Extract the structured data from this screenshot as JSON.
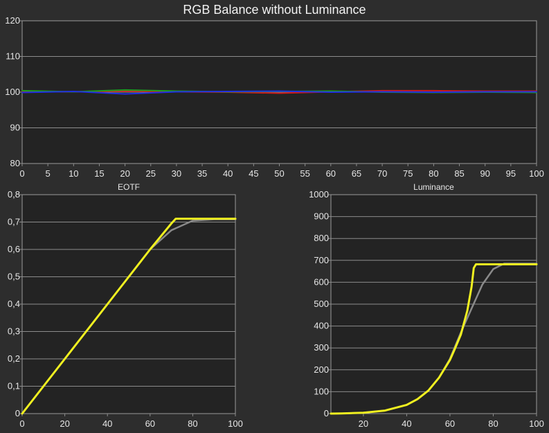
{
  "title": "RGB Balance without Luminance",
  "chart_data": [
    {
      "type": "line",
      "title": "RGB Balance without Luminance",
      "xlim": [
        0,
        100
      ],
      "ylim": [
        80,
        120
      ],
      "xticks": [
        0,
        5,
        10,
        15,
        20,
        25,
        30,
        35,
        40,
        45,
        50,
        55,
        60,
        65,
        70,
        75,
        80,
        85,
        90,
        95,
        100
      ],
      "yticks": [
        80,
        90,
        100,
        110,
        120
      ],
      "ytick_labels": [
        "80",
        "90",
        "100",
        "110",
        "120"
      ],
      "grid": true,
      "series": [
        {
          "color": "#d01a1a",
          "x": [
            0,
            10,
            20,
            30,
            40,
            50,
            60,
            70,
            80,
            90,
            100
          ],
          "y": [
            100.2,
            100.1,
            100.3,
            100.1,
            100.0,
            99.7,
            100.1,
            100.4,
            100.4,
            100.3,
            100.3
          ]
        },
        {
          "color": "#1fa01f",
          "x": [
            0,
            10,
            20,
            30,
            40,
            50,
            60,
            70,
            80,
            90,
            100
          ],
          "y": [
            100.4,
            100.1,
            100.6,
            100.3,
            100.1,
            100.2,
            100.3,
            100.0,
            99.9,
            100.0,
            99.9
          ]
        },
        {
          "color": "#2030e0",
          "x": [
            0,
            10,
            20,
            30,
            40,
            50,
            60,
            70,
            80,
            90,
            100
          ],
          "y": [
            99.9,
            100.2,
            99.5,
            100.1,
            100.2,
            100.3,
            100.0,
            100.1,
            100.0,
            100.1,
            100.1
          ]
        }
      ]
    },
    {
      "type": "line",
      "title": "EOTF",
      "xlim": [
        0,
        100
      ],
      "ylim": [
        0,
        0.8
      ],
      "xticks": [
        0,
        20,
        40,
        60,
        80,
        100
      ],
      "yticks": [
        0,
        0.1,
        0.2,
        0.3,
        0.4,
        0.5,
        0.6,
        0.7,
        0.8
      ],
      "ytick_labels": [
        "0",
        "0,1",
        "0,2",
        "0,3",
        "0,4",
        "0,5",
        "0,6",
        "0,7",
        "0,8"
      ],
      "grid": true,
      "series": [
        {
          "color": "#8a8a8a",
          "x": [
            0,
            10,
            20,
            30,
            40,
            50,
            60,
            70,
            80,
            90,
            100
          ],
          "y": [
            0,
            0.1,
            0.2,
            0.3,
            0.4,
            0.5,
            0.6,
            0.67,
            0.705,
            0.71,
            0.71
          ]
        },
        {
          "color": "#f0f020",
          "x": [
            0,
            10,
            20,
            30,
            40,
            50,
            60,
            70,
            72,
            80,
            90,
            100
          ],
          "y": [
            0,
            0.1,
            0.2,
            0.3,
            0.4,
            0.5,
            0.6,
            0.695,
            0.712,
            0.712,
            0.712,
            0.712
          ]
        }
      ]
    },
    {
      "type": "line",
      "title": "Luminance",
      "xlim": [
        5,
        100
      ],
      "ylim": [
        0,
        1000
      ],
      "xticks": [
        20,
        40,
        60,
        80,
        100
      ],
      "yticks": [
        0,
        100,
        200,
        300,
        400,
        500,
        600,
        700,
        800,
        900,
        1000
      ],
      "ytick_labels": [
        "0",
        "100",
        "200",
        "300",
        "400",
        "500",
        "600",
        "700",
        "800",
        "900",
        "1000"
      ],
      "grid": true,
      "series": [
        {
          "color": "#8a8a8a",
          "x": [
            5,
            10,
            20,
            30,
            40,
            45,
            50,
            55,
            60,
            65,
            70,
            75,
            80,
            85,
            90,
            100
          ],
          "y": [
            0,
            1,
            4,
            14,
            40,
            66,
            105,
            165,
            250,
            370,
            480,
            590,
            660,
            685,
            685,
            685
          ]
        },
        {
          "color": "#f0f020",
          "x": [
            5,
            10,
            20,
            30,
            40,
            45,
            50,
            55,
            60,
            62,
            65,
            68,
            70,
            71,
            72,
            80,
            90,
            100
          ],
          "y": [
            0,
            1,
            4,
            14,
            40,
            66,
            105,
            165,
            245,
            290,
            360,
            470,
            580,
            665,
            682,
            682,
            682,
            682
          ]
        }
      ]
    }
  ]
}
